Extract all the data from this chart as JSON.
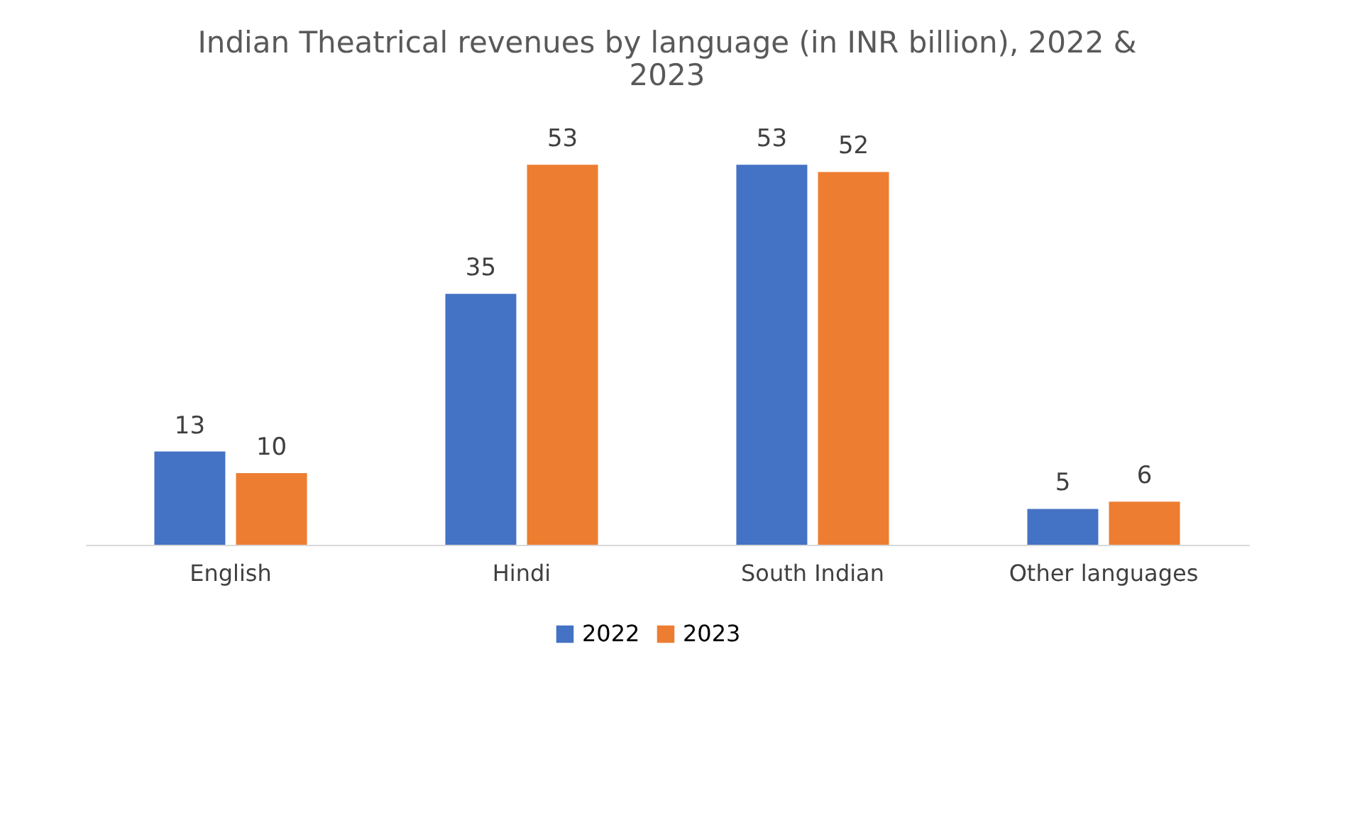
{
  "chart_data": {
    "type": "bar",
    "title": "Indian Theatrical revenues by language (in INR billion), 2022 & 2023",
    "categories": [
      "English",
      "Hindi",
      "South Indian",
      "Other languages"
    ],
    "series": [
      {
        "name": "2022",
        "color": "#4472c4",
        "values": [
          13,
          35,
          53,
          5
        ]
      },
      {
        "name": "2023",
        "color": "#ed7d31",
        "values": [
          10,
          53,
          52,
          6
        ]
      }
    ],
    "data_labels": true,
    "legend": "bottom",
    "grid": false,
    "tick_labels": "x"
  }
}
